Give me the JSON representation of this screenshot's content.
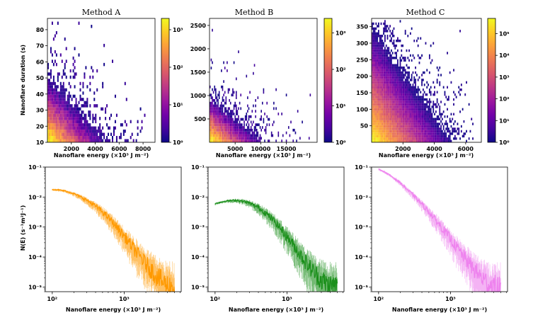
{
  "figure": {
    "colormap": [
      "#0d0887",
      "#46039f",
      "#7201a8",
      "#9c179e",
      "#bd3786",
      "#d8576b",
      "#ed7953",
      "#fb9f3a",
      "#fdca26",
      "#f0f921"
    ]
  },
  "chart_data": [
    {
      "id": "heatA",
      "type": "heatmap",
      "title": "Method A",
      "xlabel": "Nanoflare energy (×10³ J m⁻²)",
      "ylabel": "Nanoflare duration (s)",
      "xlim": [
        0,
        9000
      ],
      "ylim": [
        10,
        87
      ],
      "xticks": [
        2000,
        4000,
        6000,
        8000
      ],
      "yticks": [
        10,
        20,
        30,
        40,
        50,
        60,
        70,
        80
      ],
      "xtick_labels": [
        "2000",
        "4000",
        "6000",
        "8000"
      ],
      "ytick_labels": [
        "10",
        "20",
        "30",
        "40",
        "50",
        "60",
        "70",
        "80"
      ],
      "colorbar": {
        "scale": "log",
        "min": 1,
        "max": 2000,
        "ticks": [
          "10⁰",
          "10¹",
          "10²",
          "10³"
        ]
      },
      "density": {
        "x_scale": 1500,
        "y_scale": 12,
        "decay_max": 3.3,
        "x_extent": 8200,
        "y_extent": 85,
        "nx": 70,
        "ny": 38
      }
    },
    {
      "id": "heatB",
      "type": "heatmap",
      "title": "Method B",
      "xlabel": "Nanoflare energy (×10³ J m⁻²)",
      "ylabel": "",
      "xlim": [
        0,
        21000
      ],
      "ylim": [
        0,
        2650
      ],
      "xticks": [
        5000,
        10000,
        15000
      ],
      "yticks": [
        500,
        1000,
        1500,
        2000,
        2500
      ],
      "xtick_labels": [
        "5000",
        "10000",
        "15000"
      ],
      "ytick_labels": [
        "500",
        "1000",
        "1500",
        "2000",
        "2500"
      ],
      "colorbar": {
        "scale": "log",
        "min": 1,
        "max": 2500,
        "ticks": [
          "10⁰",
          "10¹",
          "10²",
          "10³"
        ]
      },
      "density": {
        "x_scale": 3000,
        "y_scale": 280,
        "decay_max": 3.4,
        "x_extent": 20000,
        "y_extent": 2600,
        "nx": 90,
        "ny": 45
      }
    },
    {
      "id": "heatC",
      "type": "heatmap",
      "title": "Method C",
      "xlabel": "Nanoflare energy (×10³ J m⁻²)",
      "ylabel": "",
      "xlim": [
        0,
        7000
      ],
      "ylim": [
        0,
        375
      ],
      "xticks": [
        2000,
        4000,
        6000
      ],
      "yticks": [
        50,
        100,
        150,
        200,
        250,
        300,
        350
      ],
      "xtick_labels": [
        "2000",
        "4000",
        "6000"
      ],
      "ytick_labels": [
        "50",
        "100",
        "150",
        "200",
        "250",
        "300",
        "350"
      ],
      "colorbar": {
        "scale": "log",
        "min": 1,
        "max": 500000,
        "ticks": [
          "10⁰",
          "10¹",
          "10²",
          "10³",
          "10⁴",
          "10⁵"
        ]
      },
      "density": {
        "x_scale": 900,
        "y_scale": 60,
        "decay_max": 5.7,
        "x_extent": 6500,
        "y_extent": 370,
        "nx": 80,
        "ny": 50
      }
    },
    {
      "id": "distA",
      "type": "line",
      "color": "#ff9900",
      "xlabel": "Nanoflare energy (×10³ J m⁻²)",
      "ylabel": "N(E) (s⁻¹m²J⁻¹)",
      "xscale": "log",
      "yscale": "log",
      "xlim": [
        80,
        6200
      ],
      "ylim": [
        7e-06,
        0.1
      ],
      "x": [
        100,
        120,
        150,
        200,
        250,
        300,
        400,
        500,
        600,
        700,
        800,
        1000,
        1200,
        1500,
        2000,
        2500,
        3000,
        3500,
        4000,
        5000
      ],
      "y": [
        0.018,
        0.0175,
        0.016,
        0.013,
        0.01,
        0.008,
        0.005,
        0.0032,
        0.0021,
        0.0014,
        0.00095,
        0.0005,
        0.00028,
        0.00014,
        6e-05,
        3.2e-05,
        2e-05,
        1.4e-05,
        1.1e-05,
        1e-05
      ],
      "xticks": [
        "10²",
        "10³"
      ],
      "yticks": [
        "10⁻⁵",
        "10⁻⁴",
        "10⁻³",
        "10⁻²",
        "10⁻¹"
      ]
    },
    {
      "id": "distB",
      "type": "line",
      "color": "#1a8f1a",
      "xlabel": "Nanoflare energy (×10³ J m⁻²)",
      "ylabel": "",
      "xscale": "log",
      "yscale": "log",
      "xlim": [
        80,
        6200
      ],
      "ylim": [
        7e-06,
        0.1
      ],
      "x": [
        100,
        120,
        150,
        200,
        250,
        300,
        400,
        500,
        600,
        700,
        800,
        1000,
        1200,
        1500,
        2000,
        2500,
        3000,
        3500,
        4000,
        5000
      ],
      "y": [
        0.006,
        0.0068,
        0.0075,
        0.0078,
        0.0072,
        0.0063,
        0.0045,
        0.003,
        0.002,
        0.0014,
        0.00095,
        0.00048,
        0.00027,
        0.00013,
        5e-05,
        2.7e-05,
        1.7e-05,
        1.3e-05,
        1.1e-05,
        1e-05
      ],
      "xticks": [
        "10²",
        "10³"
      ],
      "yticks": [
        "10⁻⁵",
        "10⁻⁴",
        "10⁻³",
        "10⁻²",
        "10⁻¹"
      ]
    },
    {
      "id": "distC",
      "type": "line",
      "color": "#ee82ee",
      "xlabel": "Nanoflare energy (×10³ J m⁻²)",
      "ylabel": "",
      "xscale": "log",
      "yscale": "log",
      "xlim": [
        80,
        6200
      ],
      "ylim": [
        7e-06,
        0.1
      ],
      "x": [
        100,
        120,
        150,
        200,
        250,
        300,
        400,
        500,
        600,
        700,
        800,
        1000,
        1200,
        1500,
        2000,
        2500,
        3000,
        3500,
        4000,
        5000
      ],
      "y": [
        0.085,
        0.07,
        0.05,
        0.03,
        0.018,
        0.012,
        0.0058,
        0.0032,
        0.0019,
        0.0012,
        0.0008,
        0.0004,
        0.00022,
        0.00011,
        4.5e-05,
        2.5e-05,
        1.6e-05,
        1.2e-05,
        1e-05,
        9e-06
      ],
      "xticks": [
        "10²",
        "10³"
      ],
      "yticks": [
        "10⁻⁵",
        "10⁻⁴",
        "10⁻³",
        "10⁻²",
        "10⁻¹"
      ]
    }
  ]
}
